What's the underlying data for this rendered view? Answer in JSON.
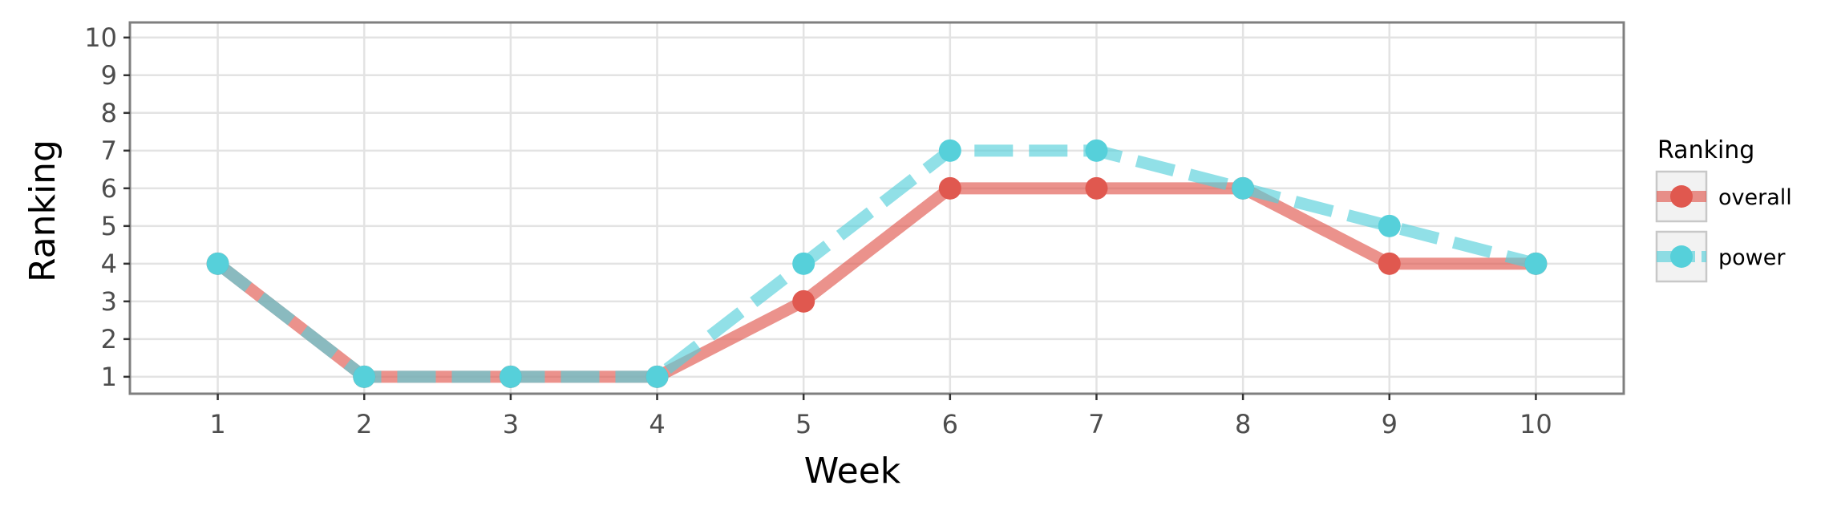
{
  "chart_data": {
    "type": "line",
    "xlabel": "Week",
    "ylabel": "Ranking",
    "x": [
      1,
      2,
      3,
      4,
      5,
      6,
      7,
      8,
      9,
      10
    ],
    "xlim": [
      0.4,
      10.6
    ],
    "ylim": [
      10.4,
      0.55
    ],
    "y_reversed": true,
    "x_ticks": [
      1,
      2,
      3,
      4,
      5,
      6,
      7,
      8,
      9,
      10
    ],
    "y_ticks": [
      1,
      2,
      3,
      4,
      5,
      6,
      7,
      8,
      9,
      10
    ],
    "grid": true,
    "legend_title": "Ranking",
    "legend_position": "right",
    "series": [
      {
        "name": "overall",
        "color": "#e0584f",
        "line_style": "solid",
        "values": [
          4,
          1,
          1,
          1,
          3,
          6,
          6,
          6,
          4,
          4
        ]
      },
      {
        "name": "power",
        "color": "#56d0da",
        "line_style": "dashed",
        "values": [
          4,
          1,
          1,
          1,
          4,
          7,
          7,
          6,
          5,
          4
        ]
      }
    ]
  }
}
